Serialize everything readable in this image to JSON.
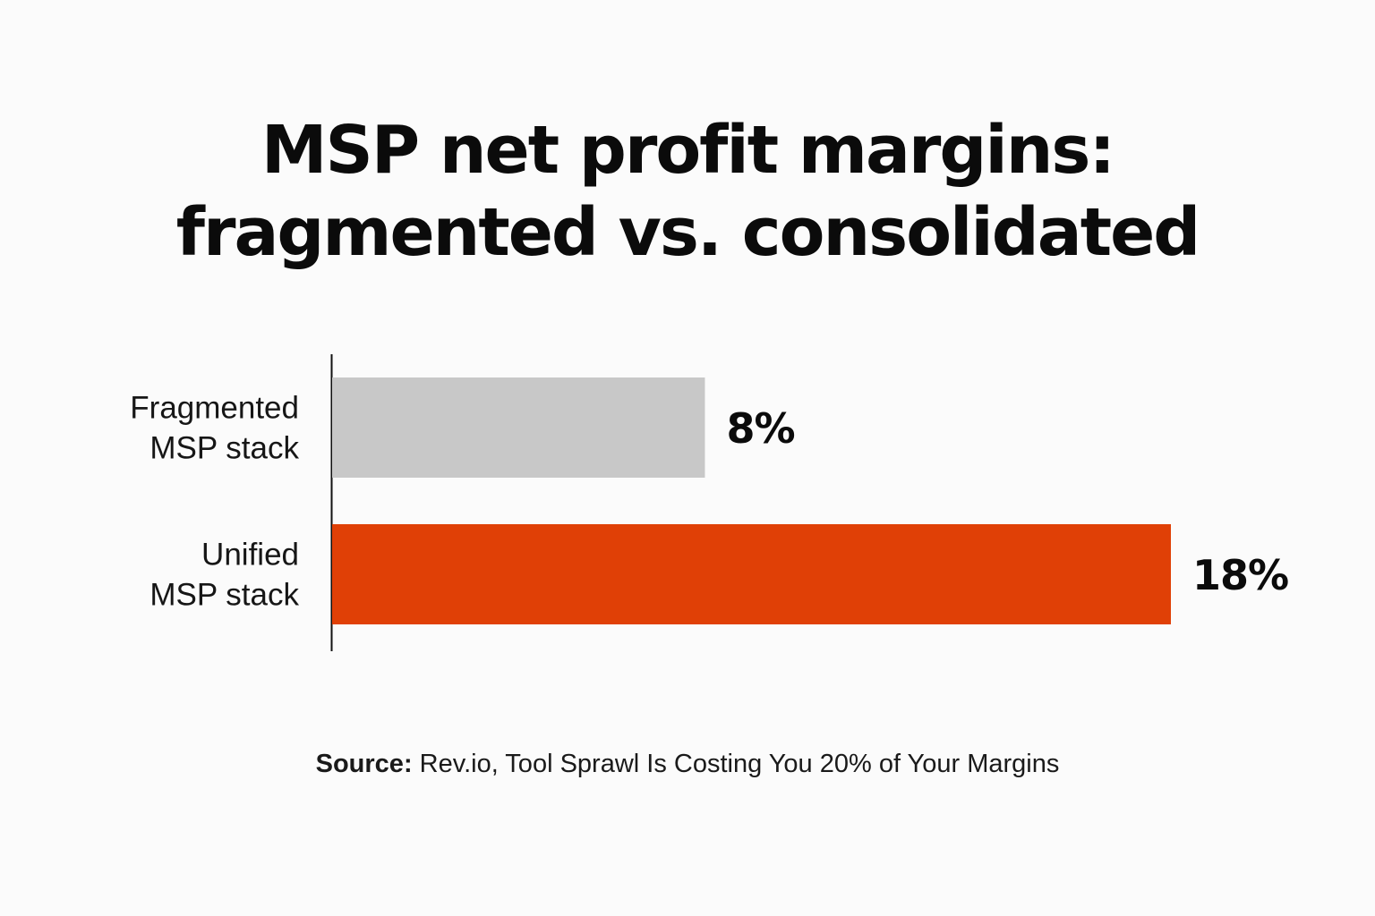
{
  "chart_data": {
    "type": "bar",
    "orientation": "horizontal",
    "title_lines": [
      "MSP net profit margins:",
      "fragmented vs. consolidated"
    ],
    "categories": [
      {
        "lines": [
          "Fragmented",
          "MSP stack"
        ]
      },
      {
        "lines": [
          "Unified",
          "MSP stack"
        ]
      }
    ],
    "values": [
      8,
      18
    ],
    "value_labels": [
      "8%",
      "18%"
    ],
    "colors": [
      "#c8c8c8",
      "#e04006"
    ],
    "xlim": [
      0,
      18
    ],
    "grid": false,
    "legend": "none"
  },
  "source": {
    "label": "Source:",
    "text": "Rev.io, Tool Sprawl Is Costing You 20% of Your Margins"
  }
}
